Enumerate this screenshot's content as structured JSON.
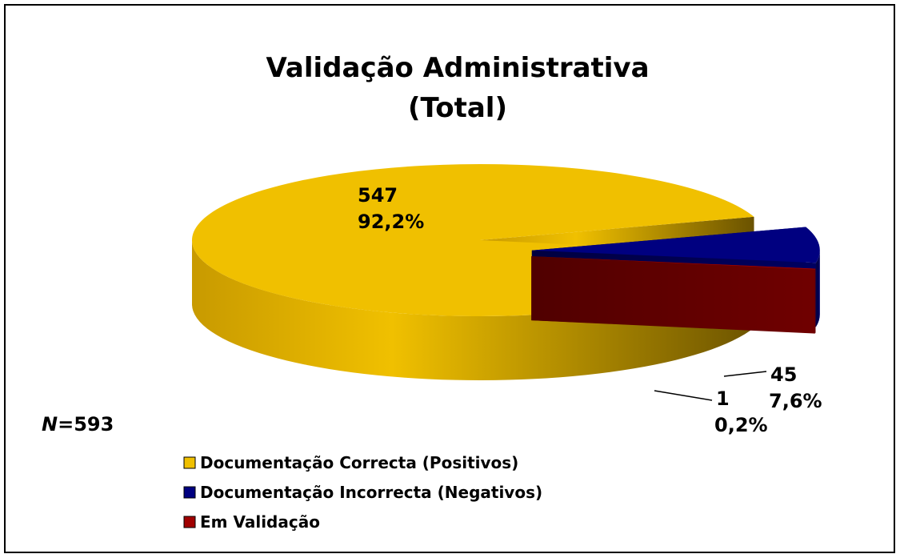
{
  "chart_data": {
    "type": "pie",
    "title": [
      "Validação Administrativa",
      "(Total)"
    ],
    "categories": [
      "Documentação Correcta (Positivos)",
      "Documentação Incorrecta (Negativos)",
      "Em Validação"
    ],
    "values": [
      547,
      45,
      1
    ],
    "percent_labels": [
      "92,2%",
      "7,6%",
      "0,2%"
    ],
    "colors": [
      "#f0c000",
      "#000080",
      "#a00000"
    ],
    "note_symbol": "N",
    "note_text": "=593"
  }
}
